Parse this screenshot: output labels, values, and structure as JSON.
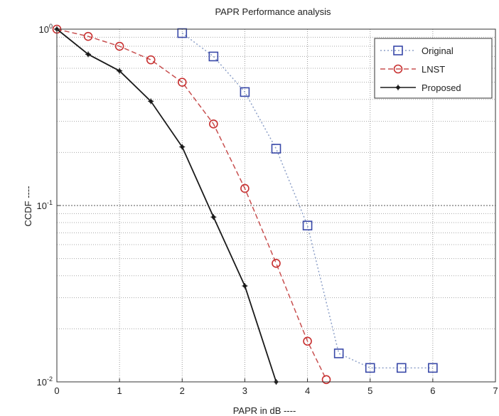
{
  "chart_data": {
    "type": "line",
    "title": "PAPR Performance analysis",
    "xlabel": "PAPR in dB ----",
    "ylabel": "CCDF ----",
    "xlim": [
      0,
      7
    ],
    "ylim": [
      0.01,
      1
    ],
    "yscale": "log",
    "xticks": [
      0,
      1,
      2,
      3,
      4,
      5,
      6,
      7
    ],
    "xtick_labels": [
      "0",
      "1",
      "2",
      "3",
      "4",
      "5",
      "6",
      "7"
    ],
    "yticks": [
      1,
      0.1,
      0.01
    ],
    "ytick_labels": [
      "10^0",
      "10^-1",
      "10^-2"
    ],
    "grid": true,
    "legend_position": "top-right",
    "series": [
      {
        "name": "Original",
        "color": "#8da0c8",
        "marker": "square",
        "marker_color": "#3848a8",
        "dash": "2,3",
        "points": [
          [
            2,
            0.95
          ],
          [
            2.5,
            0.7
          ],
          [
            3,
            0.44
          ],
          [
            3.5,
            0.21
          ],
          [
            4,
            0.077
          ],
          [
            4.5,
            0.0145
          ],
          [
            5,
            0.012
          ],
          [
            5.5,
            0.012
          ],
          [
            6,
            0.012
          ]
        ]
      },
      {
        "name": "LNST",
        "color": "#c85050",
        "marker": "circle",
        "marker_color": "#c83030",
        "dash": "7,4",
        "points": [
          [
            0,
            1
          ],
          [
            0.5,
            0.91
          ],
          [
            1,
            0.8
          ],
          [
            1.5,
            0.67
          ],
          [
            2,
            0.5
          ],
          [
            2.5,
            0.29
          ],
          [
            3,
            0.125
          ],
          [
            3.5,
            0.047
          ],
          [
            4,
            0.017
          ],
          [
            4.3,
            0.0103
          ]
        ]
      },
      {
        "name": "Proposed",
        "color": "#1a1a1a",
        "marker": "star",
        "marker_color": "#1a1a1a",
        "dash": "",
        "points": [
          [
            0,
            1
          ],
          [
            0.5,
            0.72
          ],
          [
            1,
            0.58
          ],
          [
            1.5,
            0.39
          ],
          [
            2,
            0.215
          ],
          [
            2.5,
            0.086
          ],
          [
            3,
            0.035
          ],
          [
            3.5,
            0.01
          ]
        ]
      }
    ]
  }
}
